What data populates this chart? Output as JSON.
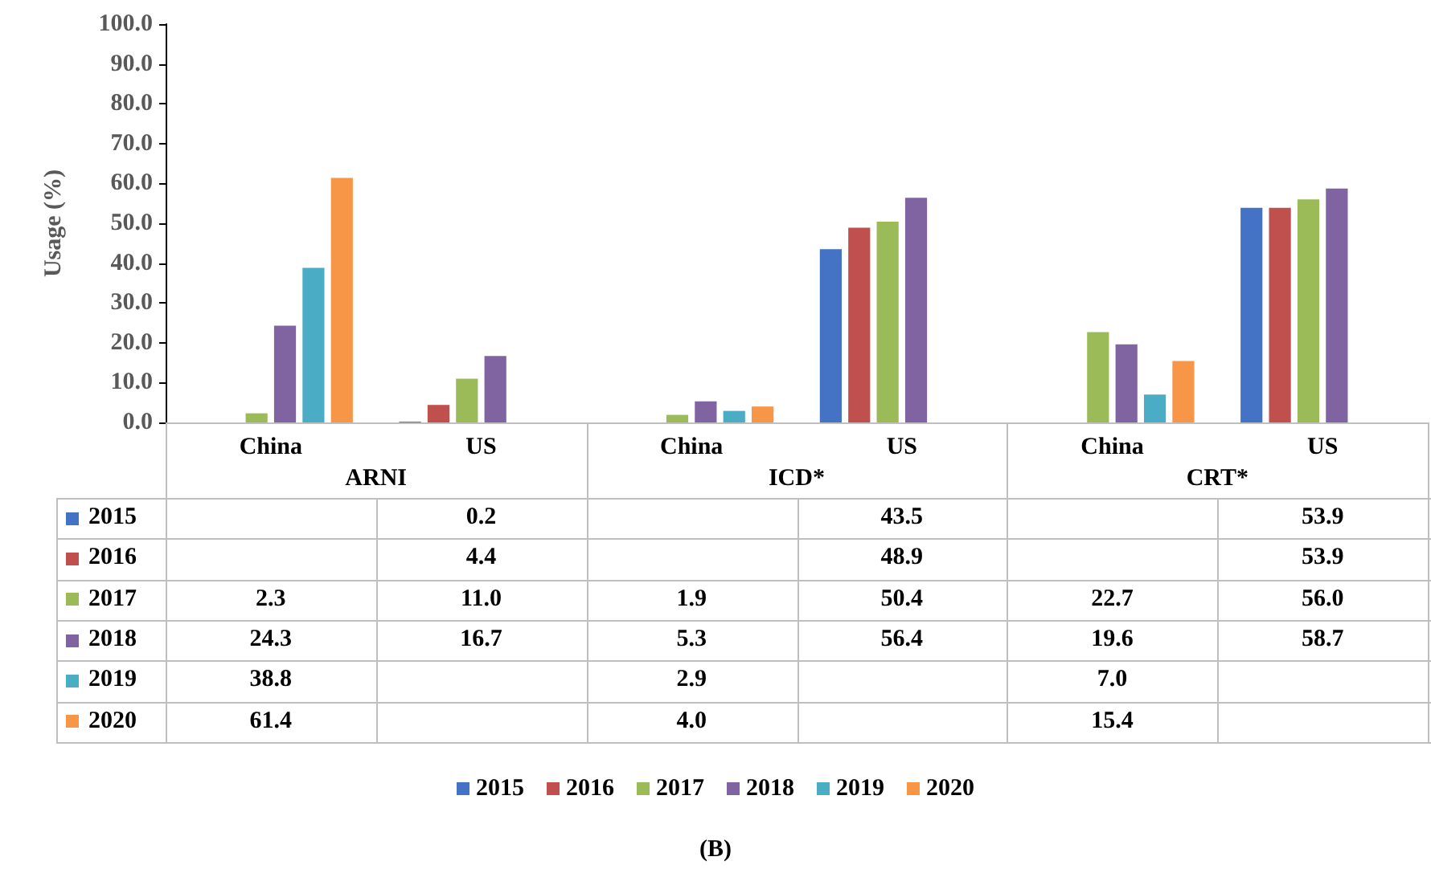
{
  "chart_data": {
    "type": "bar",
    "ylabel": "Usage (%)",
    "categories": [
      "China",
      "US",
      "China",
      "US",
      "China",
      "US"
    ],
    "series": [
      {
        "name": "2015",
        "color": "#4472c4",
        "values": [
          null,
          0.2,
          null,
          43.5,
          null,
          53.9
        ],
        "value_labels": [
          null,
          "0.2",
          null,
          "43.5",
          null,
          "53.9"
        ]
      },
      {
        "name": "2016",
        "color": "#c0504d",
        "values": [
          null,
          4.4,
          null,
          48.9,
          null,
          53.9
        ],
        "value_labels": [
          null,
          "4.4",
          null,
          "48.9",
          null,
          "53.9"
        ]
      },
      {
        "name": "2017",
        "color": "#9bbb59",
        "values": [
          2.3,
          11.0,
          1.9,
          50.4,
          22.7,
          56.0
        ],
        "value_labels": [
          "2.3",
          "11.0",
          "1.9",
          "50.4",
          "22.7",
          "56.0"
        ]
      },
      {
        "name": "2018",
        "color": "#8064a2",
        "values": [
          24.3,
          16.7,
          5.3,
          56.4,
          19.6,
          58.7
        ],
        "value_labels": [
          "24.3",
          "16.7",
          "5.3",
          "56.4",
          "19.6",
          "58.7"
        ]
      },
      {
        "name": "2019",
        "color": "#4bacc6",
        "values": [
          38.8,
          null,
          2.9,
          null,
          7.0,
          null
        ],
        "value_labels": [
          "38.8",
          null,
          "2.9",
          null,
          "7.0",
          null
        ]
      },
      {
        "name": "2020",
        "color": "#f79646",
        "values": [
          61.4,
          null,
          4.0,
          null,
          15.4,
          null
        ],
        "value_labels": [
          "61.4",
          null,
          "4.0",
          null,
          "15.4",
          null
        ]
      }
    ],
    "ylim": [
      0,
      100
    ],
    "yticks": [
      {
        "value": 0,
        "label": "0.0"
      },
      {
        "value": 10,
        "label": "10.0"
      },
      {
        "value": 20,
        "label": "20.0"
      },
      {
        "value": 30,
        "label": "30.0"
      },
      {
        "value": 40,
        "label": "40.0"
      },
      {
        "value": 50,
        "label": "50.0"
      },
      {
        "value": 60,
        "label": "60.0"
      },
      {
        "value": 70,
        "label": "70.0"
      },
      {
        "value": 80,
        "label": "80.0"
      },
      {
        "value": 90,
        "label": "90.0"
      },
      {
        "value": 100,
        "label": "100.0"
      }
    ],
    "grid": false,
    "legend": "bottom",
    "annotations": [
      "ARNI",
      "ICD*",
      "CRT*",
      "(B)"
    ]
  }
}
